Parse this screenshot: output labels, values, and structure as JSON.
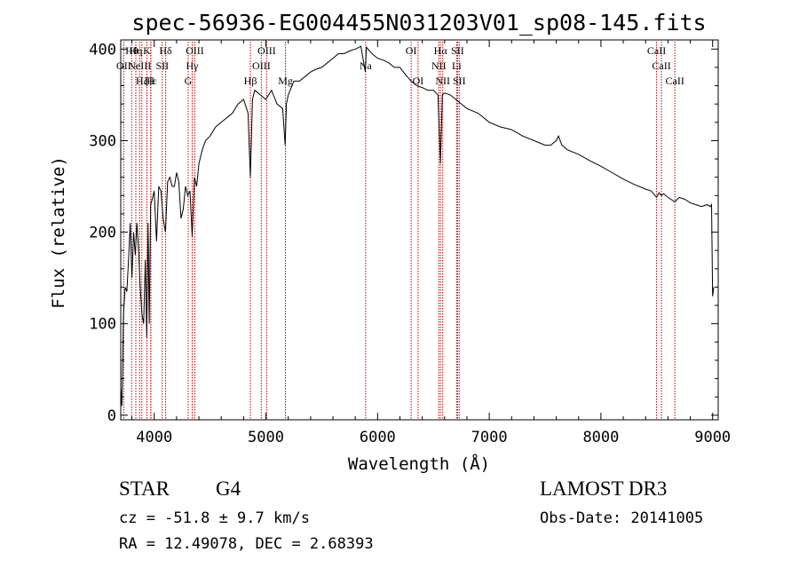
{
  "chart_data": {
    "type": "line",
    "title": "spec-56936-EG004455N031203V01_sp08-145.fits",
    "xlabel": "Wavelength (Å)",
    "ylabel": "Flux (relative)",
    "xlim": [
      3700,
      9050
    ],
    "ylim": [
      -5,
      410
    ],
    "x_ticks": [
      4000,
      5000,
      6000,
      7000,
      8000,
      9000
    ],
    "y_ticks": [
      0,
      100,
      200,
      300,
      400
    ],
    "grid": false,
    "series": [
      {
        "x": [
          3700,
          3710,
          3725,
          3740,
          3755,
          3770,
          3785,
          3800,
          3815,
          3830,
          3845,
          3860,
          3875,
          3890,
          3905,
          3920,
          3933,
          3945,
          3955,
          3968,
          3980,
          4000,
          4020,
          4040,
          4060,
          4080,
          4101,
          4120,
          4140,
          4160,
          4180,
          4200,
          4220,
          4240,
          4260,
          4280,
          4300,
          4320,
          4340,
          4360,
          4380,
          4400,
          4430,
          4460,
          4500,
          4550,
          4600,
          4650,
          4700,
          4750,
          4800,
          4840,
          4861,
          4880,
          4900,
          4950,
          5000,
          5050,
          5100,
          5150,
          5172,
          5183,
          5200,
          5250,
          5300,
          5350,
          5400,
          5450,
          5500,
          5550,
          5600,
          5650,
          5700,
          5750,
          5800,
          5850,
          5890,
          5900,
          5950,
          6000,
          6050,
          6100,
          6150,
          6200,
          6250,
          6300,
          6350,
          6400,
          6450,
          6500,
          6540,
          6563,
          6580,
          6600,
          6650,
          6700,
          6750,
          6800,
          6900,
          7000,
          7100,
          7200,
          7300,
          7400,
          7500,
          7550,
          7600,
          7620,
          7650,
          7700,
          7800,
          7900,
          8000,
          8100,
          8200,
          8300,
          8400,
          8450,
          8498,
          8520,
          8542,
          8560,
          8600,
          8662,
          8700,
          8750,
          8800,
          8850,
          8900,
          8950,
          8980,
          8990,
          9000,
          9010
        ],
        "y": [
          30,
          10,
          110,
          140,
          135,
          170,
          210,
          150,
          200,
          175,
          210,
          180,
          140,
          110,
          100,
          170,
          85,
          210,
          100,
          230,
          235,
          245,
          190,
          250,
          245,
          215,
          200,
          255,
          260,
          250,
          250,
          265,
          255,
          215,
          225,
          250,
          240,
          245,
          195,
          260,
          250,
          275,
          290,
          300,
          305,
          315,
          320,
          325,
          330,
          340,
          345,
          330,
          260,
          345,
          355,
          350,
          345,
          355,
          340,
          335,
          295,
          340,
          350,
          365,
          365,
          370,
          375,
          378,
          380,
          385,
          390,
          395,
          395,
          398,
          400,
          403,
          375,
          402,
          395,
          390,
          388,
          385,
          380,
          380,
          372,
          365,
          360,
          358,
          355,
          355,
          350,
          275,
          350,
          352,
          350,
          345,
          340,
          335,
          330,
          320,
          315,
          312,
          305,
          300,
          295,
          295,
          300,
          305,
          295,
          290,
          285,
          278,
          272,
          265,
          258,
          252,
          247,
          245,
          238,
          243,
          240,
          242,
          238,
          233,
          238,
          236,
          232,
          230,
          228,
          230,
          228,
          230,
          130,
          140
        ]
      }
    ],
    "lines": [
      {
        "wl": 3727,
        "labels": [
          {
            "text": "OII",
            "row": 1
          }
        ]
      },
      {
        "wl": 3798,
        "labels": [
          {
            "text": "Hθ",
            "row": 0
          }
        ]
      },
      {
        "wl": 3835,
        "labels": [
          {
            "text": "Hη",
            "row": 0
          }
        ]
      },
      {
        "wl": 3869,
        "labels": [
          {
            "text": "NeIII",
            "row": 1
          }
        ]
      },
      {
        "wl": 3889,
        "labels": [
          {
            "text": "Hζ",
            "row": 2
          }
        ]
      },
      {
        "wl": 3934,
        "labels": [
          {
            "text": "K",
            "row": 0
          }
        ]
      },
      {
        "wl": 3968,
        "labels": [
          {
            "text": "H",
            "row": 2
          }
        ]
      },
      {
        "wl": 3970,
        "labels": [
          {
            "text": "Hε",
            "row": 2
          }
        ]
      },
      {
        "wl": 4072,
        "labels": [
          {
            "text": "SII",
            "row": 1
          }
        ]
      },
      {
        "wl": 4102,
        "labels": [
          {
            "text": "Hδ",
            "row": 0
          }
        ]
      },
      {
        "wl": 4304,
        "labels": [
          {
            "text": "G",
            "row": 2
          }
        ]
      },
      {
        "wl": 4340,
        "labels": [
          {
            "text": "Hγ",
            "row": 1
          }
        ]
      },
      {
        "wl": 4363,
        "labels": [
          {
            "text": "OIII",
            "row": 0
          }
        ]
      },
      {
        "wl": 4861,
        "labels": [
          {
            "text": "Hβ",
            "row": 2
          }
        ]
      },
      {
        "wl": 4959,
        "labels": [
          {
            "text": "OIII",
            "row": 1
          }
        ]
      },
      {
        "wl": 5007,
        "labels": [
          {
            "text": "OIII",
            "row": 0
          }
        ]
      },
      {
        "wl": 5175,
        "labels": [
          {
            "text": "Mg",
            "row": 2
          }
        ]
      },
      {
        "wl": 5893,
        "labels": [
          {
            "text": "Na",
            "row": 1
          }
        ]
      },
      {
        "wl": 6300,
        "labels": [
          {
            "text": "OI",
            "row": 0
          }
        ]
      },
      {
        "wl": 6363,
        "labels": [
          {
            "text": "OI",
            "row": 2
          }
        ]
      },
      {
        "wl": 6548,
        "labels": [
          {
            "text": "NII",
            "row": 1
          }
        ]
      },
      {
        "wl": 6563,
        "labels": [
          {
            "text": "Hα",
            "row": 0
          }
        ]
      },
      {
        "wl": 6583,
        "labels": [
          {
            "text": "NII",
            "row": 2
          }
        ]
      },
      {
        "wl": 6708,
        "labels": [
          {
            "text": "Li",
            "row": 1
          }
        ]
      },
      {
        "wl": 6716,
        "labels": [
          {
            "text": "SII",
            "row": 0
          }
        ]
      },
      {
        "wl": 6731,
        "labels": [
          {
            "text": "SII",
            "row": 2
          }
        ]
      },
      {
        "wl": 8498,
        "labels": [
          {
            "text": "CaII",
            "row": 0
          }
        ]
      },
      {
        "wl": 8542,
        "labels": [
          {
            "text": "CaII",
            "row": 1
          }
        ]
      },
      {
        "wl": 8662,
        "labels": [
          {
            "text": "CaII",
            "row": 2
          }
        ]
      }
    ]
  },
  "info": {
    "object_type": "STAR",
    "subclass": "G4",
    "survey": "LAMOST DR3",
    "redshift": "cz = -51.8 ± 9.7 km/s",
    "obs_date": "Obs-Date: 20141005",
    "coordinates": "RA =  12.49078, DEC =   2.68393"
  }
}
